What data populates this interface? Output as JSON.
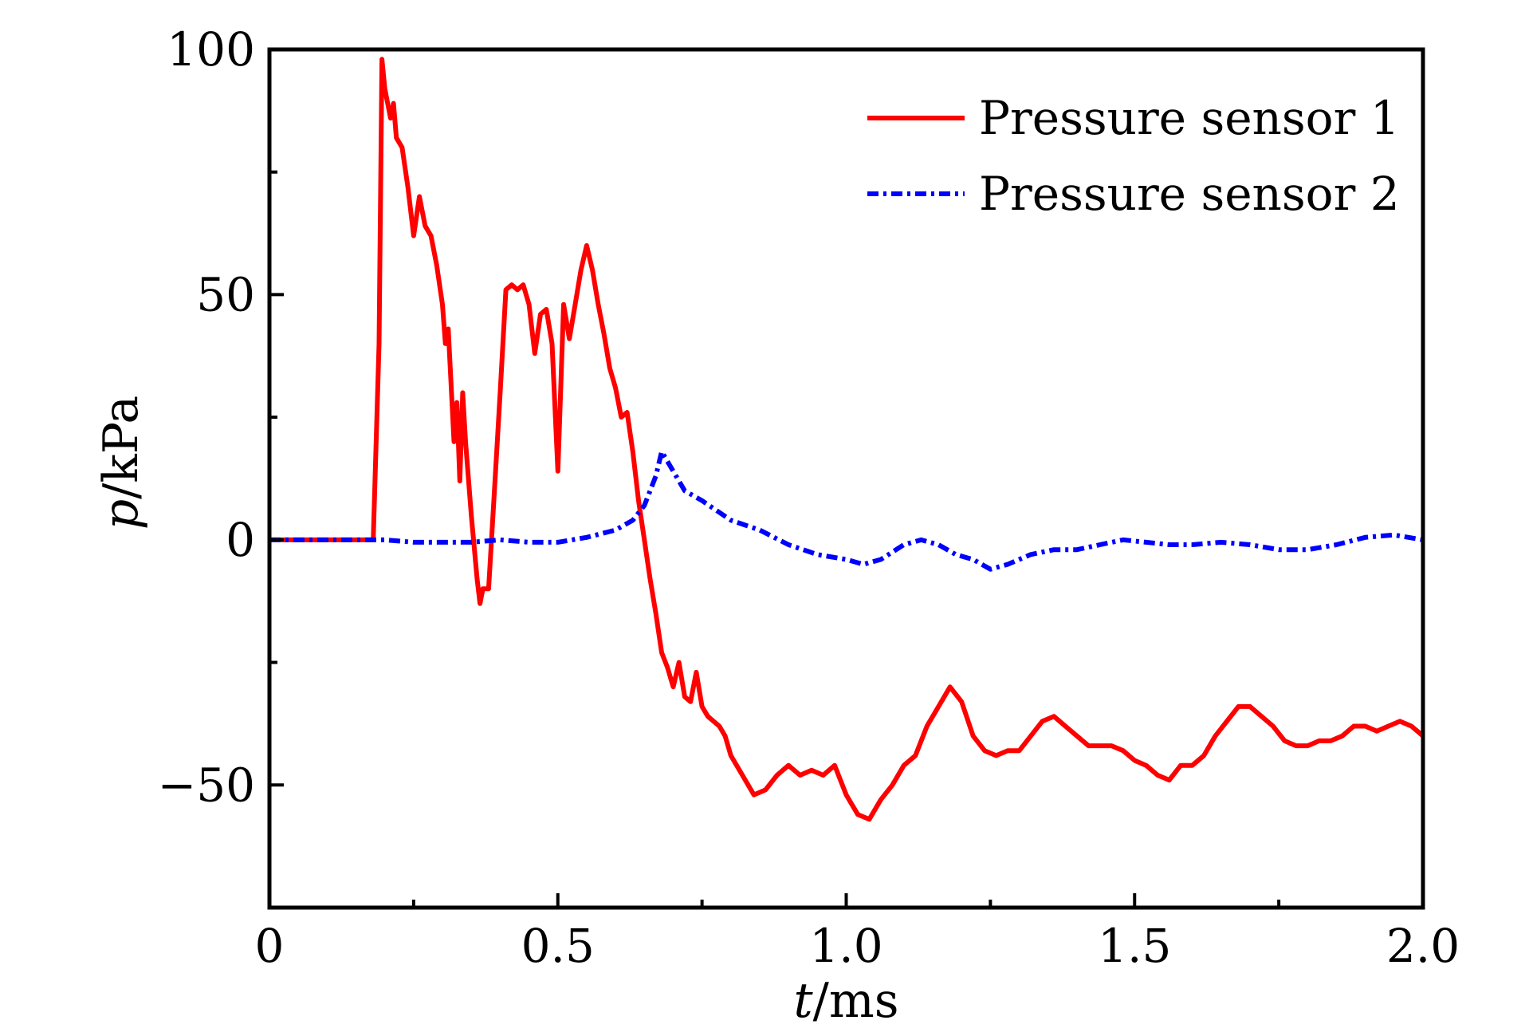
{
  "chart_data": {
    "type": "line",
    "title": "",
    "xlabel": {
      "var": "t",
      "unit": "/ms"
    },
    "ylabel": {
      "var": "p",
      "unit": "/kPa"
    },
    "xlim": [
      0,
      2.0
    ],
    "ylim": [
      -75,
      100
    ],
    "xticks": [
      {
        "value": 0,
        "label": "0"
      },
      {
        "value": 0.5,
        "label": "0.5"
      },
      {
        "value": 1.0,
        "label": "1.0"
      },
      {
        "value": 1.5,
        "label": "1.5"
      },
      {
        "value": 2.0,
        "label": "2.0"
      }
    ],
    "xminor": [
      0.25,
      0.75,
      1.25,
      1.75
    ],
    "yticks": [
      {
        "value": 100,
        "label": "100"
      },
      {
        "value": 50,
        "label": "50"
      },
      {
        "value": 0,
        "label": "0"
      },
      {
        "value": -50,
        "label": "−50"
      }
    ],
    "yminor": [
      75,
      25,
      -25
    ],
    "grid": false,
    "legend_position": "top-right",
    "series": [
      {
        "name": "Pressure sensor 1",
        "color": "#ff0000",
        "style": "solid",
        "x": [
          0,
          0.05,
          0.1,
          0.15,
          0.17,
          0.18,
          0.19,
          0.195,
          0.2,
          0.21,
          0.215,
          0.22,
          0.23,
          0.24,
          0.25,
          0.26,
          0.27,
          0.28,
          0.29,
          0.3,
          0.305,
          0.31,
          0.32,
          0.325,
          0.33,
          0.335,
          0.34,
          0.35,
          0.36,
          0.365,
          0.37,
          0.38,
          0.39,
          0.4,
          0.41,
          0.42,
          0.43,
          0.44,
          0.45,
          0.46,
          0.47,
          0.48,
          0.49,
          0.5,
          0.51,
          0.52,
          0.53,
          0.54,
          0.55,
          0.56,
          0.57,
          0.58,
          0.59,
          0.6,
          0.61,
          0.62,
          0.63,
          0.64,
          0.65,
          0.66,
          0.67,
          0.68,
          0.69,
          0.7,
          0.71,
          0.72,
          0.73,
          0.74,
          0.75,
          0.76,
          0.77,
          0.78,
          0.79,
          0.8,
          0.82,
          0.84,
          0.86,
          0.88,
          0.9,
          0.92,
          0.94,
          0.96,
          0.98,
          1.0,
          1.02,
          1.04,
          1.06,
          1.08,
          1.1,
          1.12,
          1.14,
          1.16,
          1.18,
          1.2,
          1.22,
          1.24,
          1.26,
          1.28,
          1.3,
          1.32,
          1.34,
          1.36,
          1.38,
          1.4,
          1.42,
          1.44,
          1.46,
          1.48,
          1.5,
          1.52,
          1.54,
          1.56,
          1.58,
          1.6,
          1.62,
          1.64,
          1.66,
          1.68,
          1.7,
          1.72,
          1.74,
          1.76,
          1.78,
          1.8,
          1.82,
          1.84,
          1.86,
          1.88,
          1.9,
          1.92,
          1.94,
          1.96,
          1.98,
          2.0
        ],
        "y": [
          0,
          0,
          0,
          0,
          0,
          0,
          40,
          98,
          92,
          86,
          89,
          82,
          80,
          72,
          62,
          70,
          64,
          62,
          56,
          48,
          40,
          43,
          20,
          28,
          12,
          30,
          20,
          5,
          -8,
          -13,
          -10,
          -10,
          10,
          30,
          51,
          52,
          51,
          52,
          48,
          38,
          46,
          47,
          40,
          14,
          48,
          41,
          48,
          55,
          60,
          55,
          48,
          42,
          35,
          31,
          25,
          26,
          18,
          8,
          0,
          -8,
          -15,
          -23,
          -26,
          -30,
          -25,
          -32,
          -33,
          -27,
          -34,
          -36,
          -37,
          -38,
          -40,
          -44,
          -48,
          -52,
          -51,
          -48,
          -46,
          -48,
          -47,
          -48,
          -46,
          -52,
          -56,
          -57,
          -53,
          -50,
          -46,
          -44,
          -38,
          -34,
          -30,
          -33,
          -40,
          -43,
          -44,
          -43,
          -43,
          -40,
          -37,
          -36,
          -38,
          -40,
          -42,
          -42,
          -42,
          -43,
          -45,
          -46,
          -48,
          -49,
          -46,
          -46,
          -44,
          -40,
          -37,
          -34,
          -34,
          -36,
          -38,
          -41,
          -42,
          -42,
          -41,
          -41,
          -40,
          -38,
          -38,
          -39,
          -38,
          -37,
          -38,
          -40
        ]
      },
      {
        "name": "Pressure sensor 2",
        "color": "#0000ff",
        "style": "dash-dot",
        "x": [
          0,
          0.1,
          0.15,
          0.2,
          0.25,
          0.3,
          0.35,
          0.4,
          0.45,
          0.5,
          0.55,
          0.6,
          0.63,
          0.65,
          0.67,
          0.68,
          0.7,
          0.72,
          0.75,
          0.8,
          0.85,
          0.9,
          0.95,
          1.0,
          1.03,
          1.06,
          1.1,
          1.13,
          1.16,
          1.19,
          1.22,
          1.25,
          1.28,
          1.32,
          1.36,
          1.4,
          1.44,
          1.48,
          1.52,
          1.56,
          1.6,
          1.65,
          1.7,
          1.75,
          1.8,
          1.85,
          1.9,
          1.95,
          2.0
        ],
        "y": [
          0,
          0,
          0,
          0,
          -0.5,
          -0.5,
          -0.5,
          0,
          -0.5,
          -0.5,
          0.5,
          2,
          4,
          7,
          13,
          18,
          14,
          10,
          8,
          4,
          2,
          -1,
          -3,
          -4,
          -5,
          -4,
          -1,
          0,
          -1,
          -3,
          -4,
          -6,
          -5,
          -3,
          -2,
          -2,
          -1,
          0,
          -0.5,
          -1,
          -1,
          -0.5,
          -1,
          -2,
          -2,
          -1,
          0.5,
          1,
          0
        ]
      }
    ]
  }
}
